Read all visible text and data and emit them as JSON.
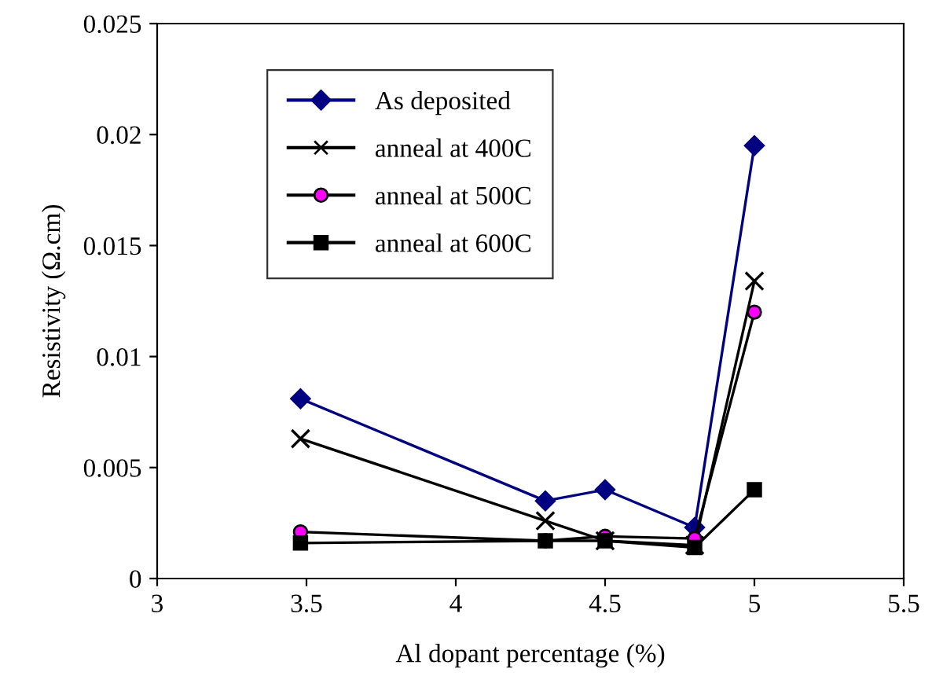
{
  "chart_data": {
    "type": "line",
    "xlabel": "Al dopant percentage (%)",
    "ylabel": "Resistivity (Ω.cm)",
    "x": [
      3.48,
      4.3,
      4.5,
      4.8,
      5.0
    ],
    "series": [
      {
        "name": "As deposited",
        "color": "#000080",
        "marker": "diamond",
        "values": [
          0.0081,
          0.0035,
          0.004,
          0.0023,
          0.0195
        ]
      },
      {
        "name": "anneal at 400C",
        "color": "#000000",
        "marker": "cross",
        "values": [
          0.0063,
          0.0026,
          0.0017,
          0.0015,
          0.0134
        ]
      },
      {
        "name": "anneal at 500C",
        "color": "#000000",
        "marker": "circle",
        "colors": [
          "#ff00ff",
          "#ff00ff",
          "#ff00ff",
          "#ff00ff",
          "#ff00ff"
        ],
        "values": [
          0.0021,
          0.0017,
          0.0019,
          0.0018,
          0.012
        ]
      },
      {
        "name": "anneal at 600C",
        "color": "#000000",
        "marker": "square",
        "values": [
          0.0016,
          0.0017,
          0.0017,
          0.0014,
          0.004
        ]
      }
    ],
    "xlim": [
      3,
      5.5
    ],
    "xticks": [
      3,
      3.5,
      4,
      4.5,
      5,
      5.5
    ],
    "ylim": [
      0,
      0.025
    ],
    "yticks": [
      0,
      0.005,
      0.01,
      0.015,
      0.02,
      0.025
    ],
    "grid": false,
    "legend": "top left",
    "line_style": "solid"
  }
}
